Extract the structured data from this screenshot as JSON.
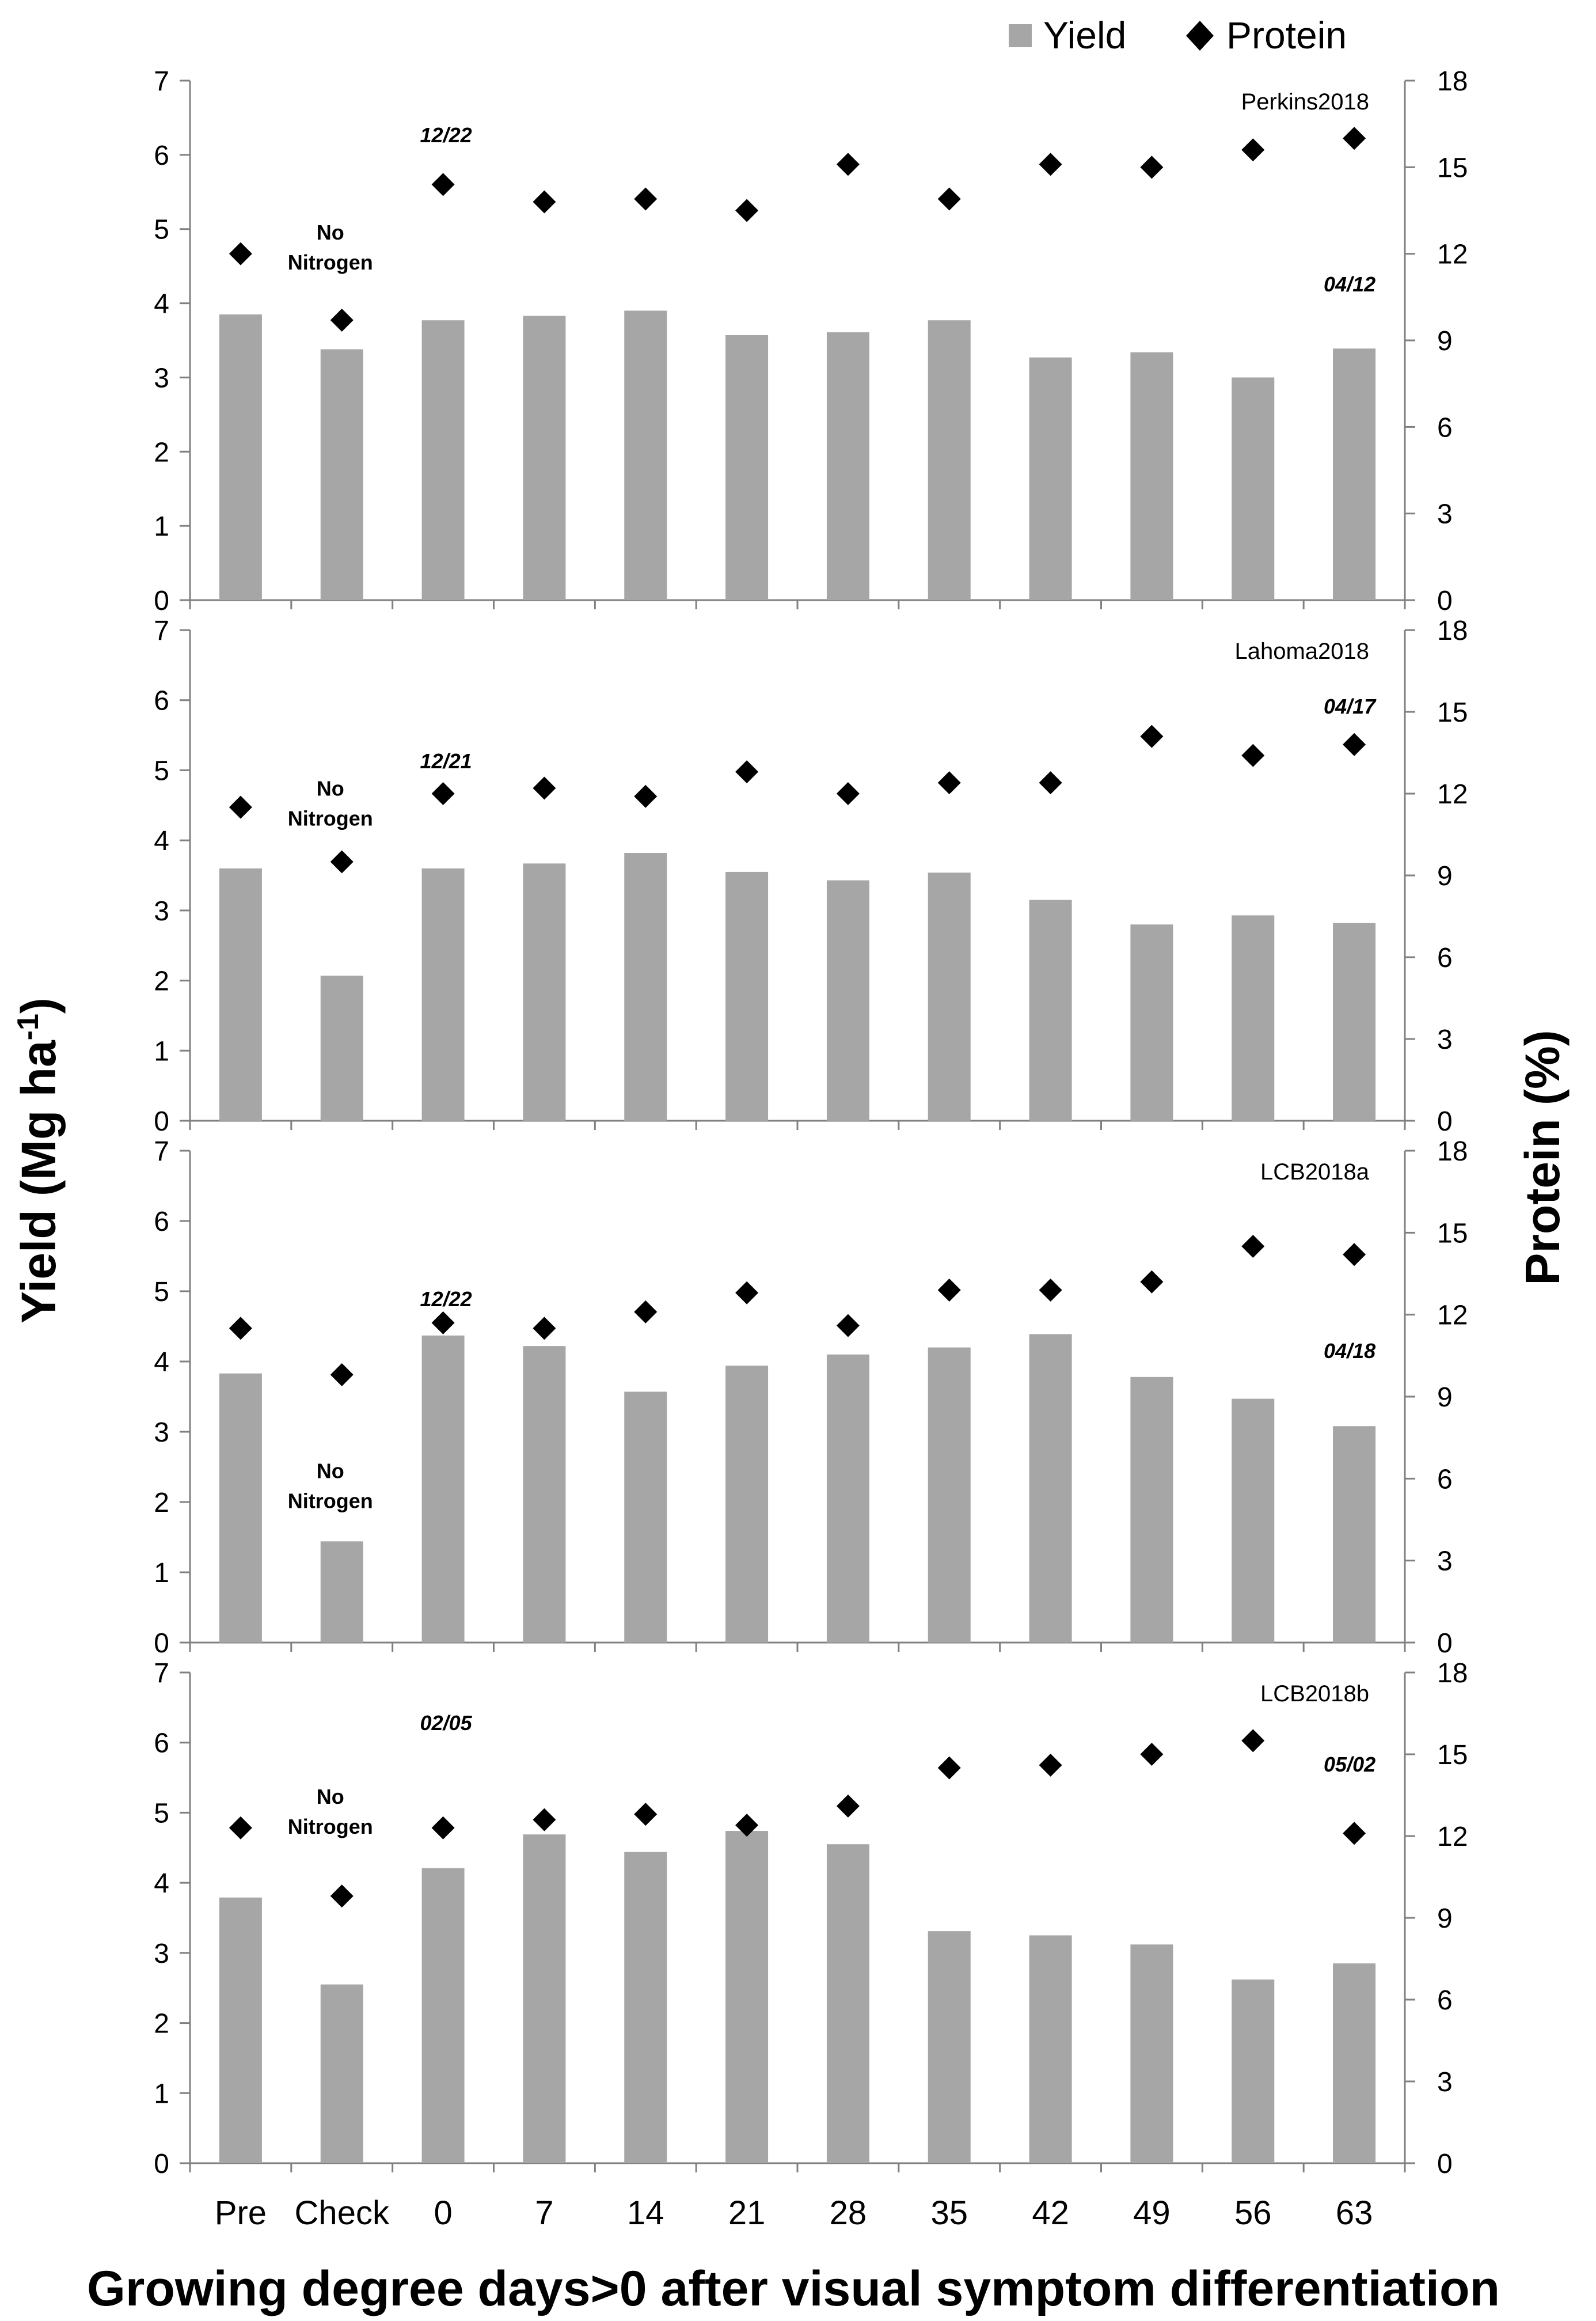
{
  "chart_data": {
    "type": "bar+scatter",
    "categories": [
      "Pre",
      "Check",
      "0",
      "7",
      "14",
      "21",
      "28",
      "35",
      "42",
      "49",
      "56",
      "63"
    ],
    "xlabel": "Growing degree days>0 after visual symptom differentiation",
    "ylabel_left": {
      "main": "Yield (Mg ha",
      "sup": "-1",
      "close": ")"
    },
    "ylabel_right": "Protein (%)",
    "legend": [
      {
        "name": "Yield",
        "marker": "square",
        "color": "#a6a6a6"
      },
      {
        "name": "Protein",
        "marker": "diamond",
        "color": "#000000"
      }
    ],
    "left_axis": {
      "min": 0,
      "max": 7,
      "ticks": [
        "0",
        "1",
        "2",
        "3",
        "4",
        "5",
        "6",
        "7"
      ]
    },
    "right_axis": {
      "min": 0,
      "max": 18,
      "ticks": [
        "0",
        "3",
        "6",
        "9",
        "12",
        "15",
        "18"
      ]
    },
    "colors": {
      "bar": "#a6a6a6",
      "marker": "#000000",
      "axis": "#808080"
    },
    "panels": [
      {
        "site": "Perkins2018",
        "yield": [
          3.85,
          3.38,
          3.77,
          3.83,
          3.9,
          3.57,
          3.61,
          3.77,
          3.27,
          3.34,
          3.0,
          3.39
        ],
        "protein": [
          12.0,
          9.7,
          14.4,
          13.8,
          13.9,
          13.5,
          15.1,
          13.9,
          15.1,
          15.0,
          15.6,
          16.0
        ],
        "no_nitrogen": [
          "No",
          "Nitrogen"
        ],
        "start_date": "12/22",
        "end_date": "04/12"
      },
      {
        "site": "Lahoma2018",
        "yield": [
          3.6,
          2.07,
          3.6,
          3.67,
          3.82,
          3.55,
          3.43,
          3.54,
          3.15,
          2.8,
          2.93,
          2.82
        ],
        "protein": [
          11.5,
          9.5,
          12.0,
          12.2,
          11.9,
          12.8,
          12.0,
          12.4,
          12.4,
          14.1,
          13.4,
          13.8
        ],
        "no_nitrogen": [
          "No",
          "Nitrogen"
        ],
        "start_date": "12/21",
        "end_date": "04/17"
      },
      {
        "site": "LCB2018a",
        "yield": [
          3.83,
          1.44,
          4.37,
          4.22,
          3.57,
          3.94,
          4.1,
          4.2,
          4.39,
          3.78,
          3.47,
          3.08
        ],
        "protein": [
          11.5,
          9.8,
          11.7,
          11.5,
          12.1,
          12.8,
          11.6,
          12.9,
          12.9,
          13.2,
          14.5,
          14.2
        ],
        "no_nitrogen": [
          "No",
          "Nitrogen"
        ],
        "start_date": "12/22",
        "end_date": "04/18"
      },
      {
        "site": "LCB2018b",
        "yield": [
          3.79,
          2.55,
          4.21,
          4.69,
          4.44,
          4.74,
          4.55,
          3.31,
          3.25,
          3.12,
          2.62,
          2.85
        ],
        "protein": [
          12.3,
          9.8,
          12.3,
          12.6,
          12.8,
          12.4,
          13.1,
          14.5,
          14.6,
          15.0,
          15.5,
          12.1
        ],
        "no_nitrogen": [
          "No",
          "Nitrogen"
        ],
        "start_date": "02/05",
        "end_date": "05/02"
      }
    ]
  }
}
